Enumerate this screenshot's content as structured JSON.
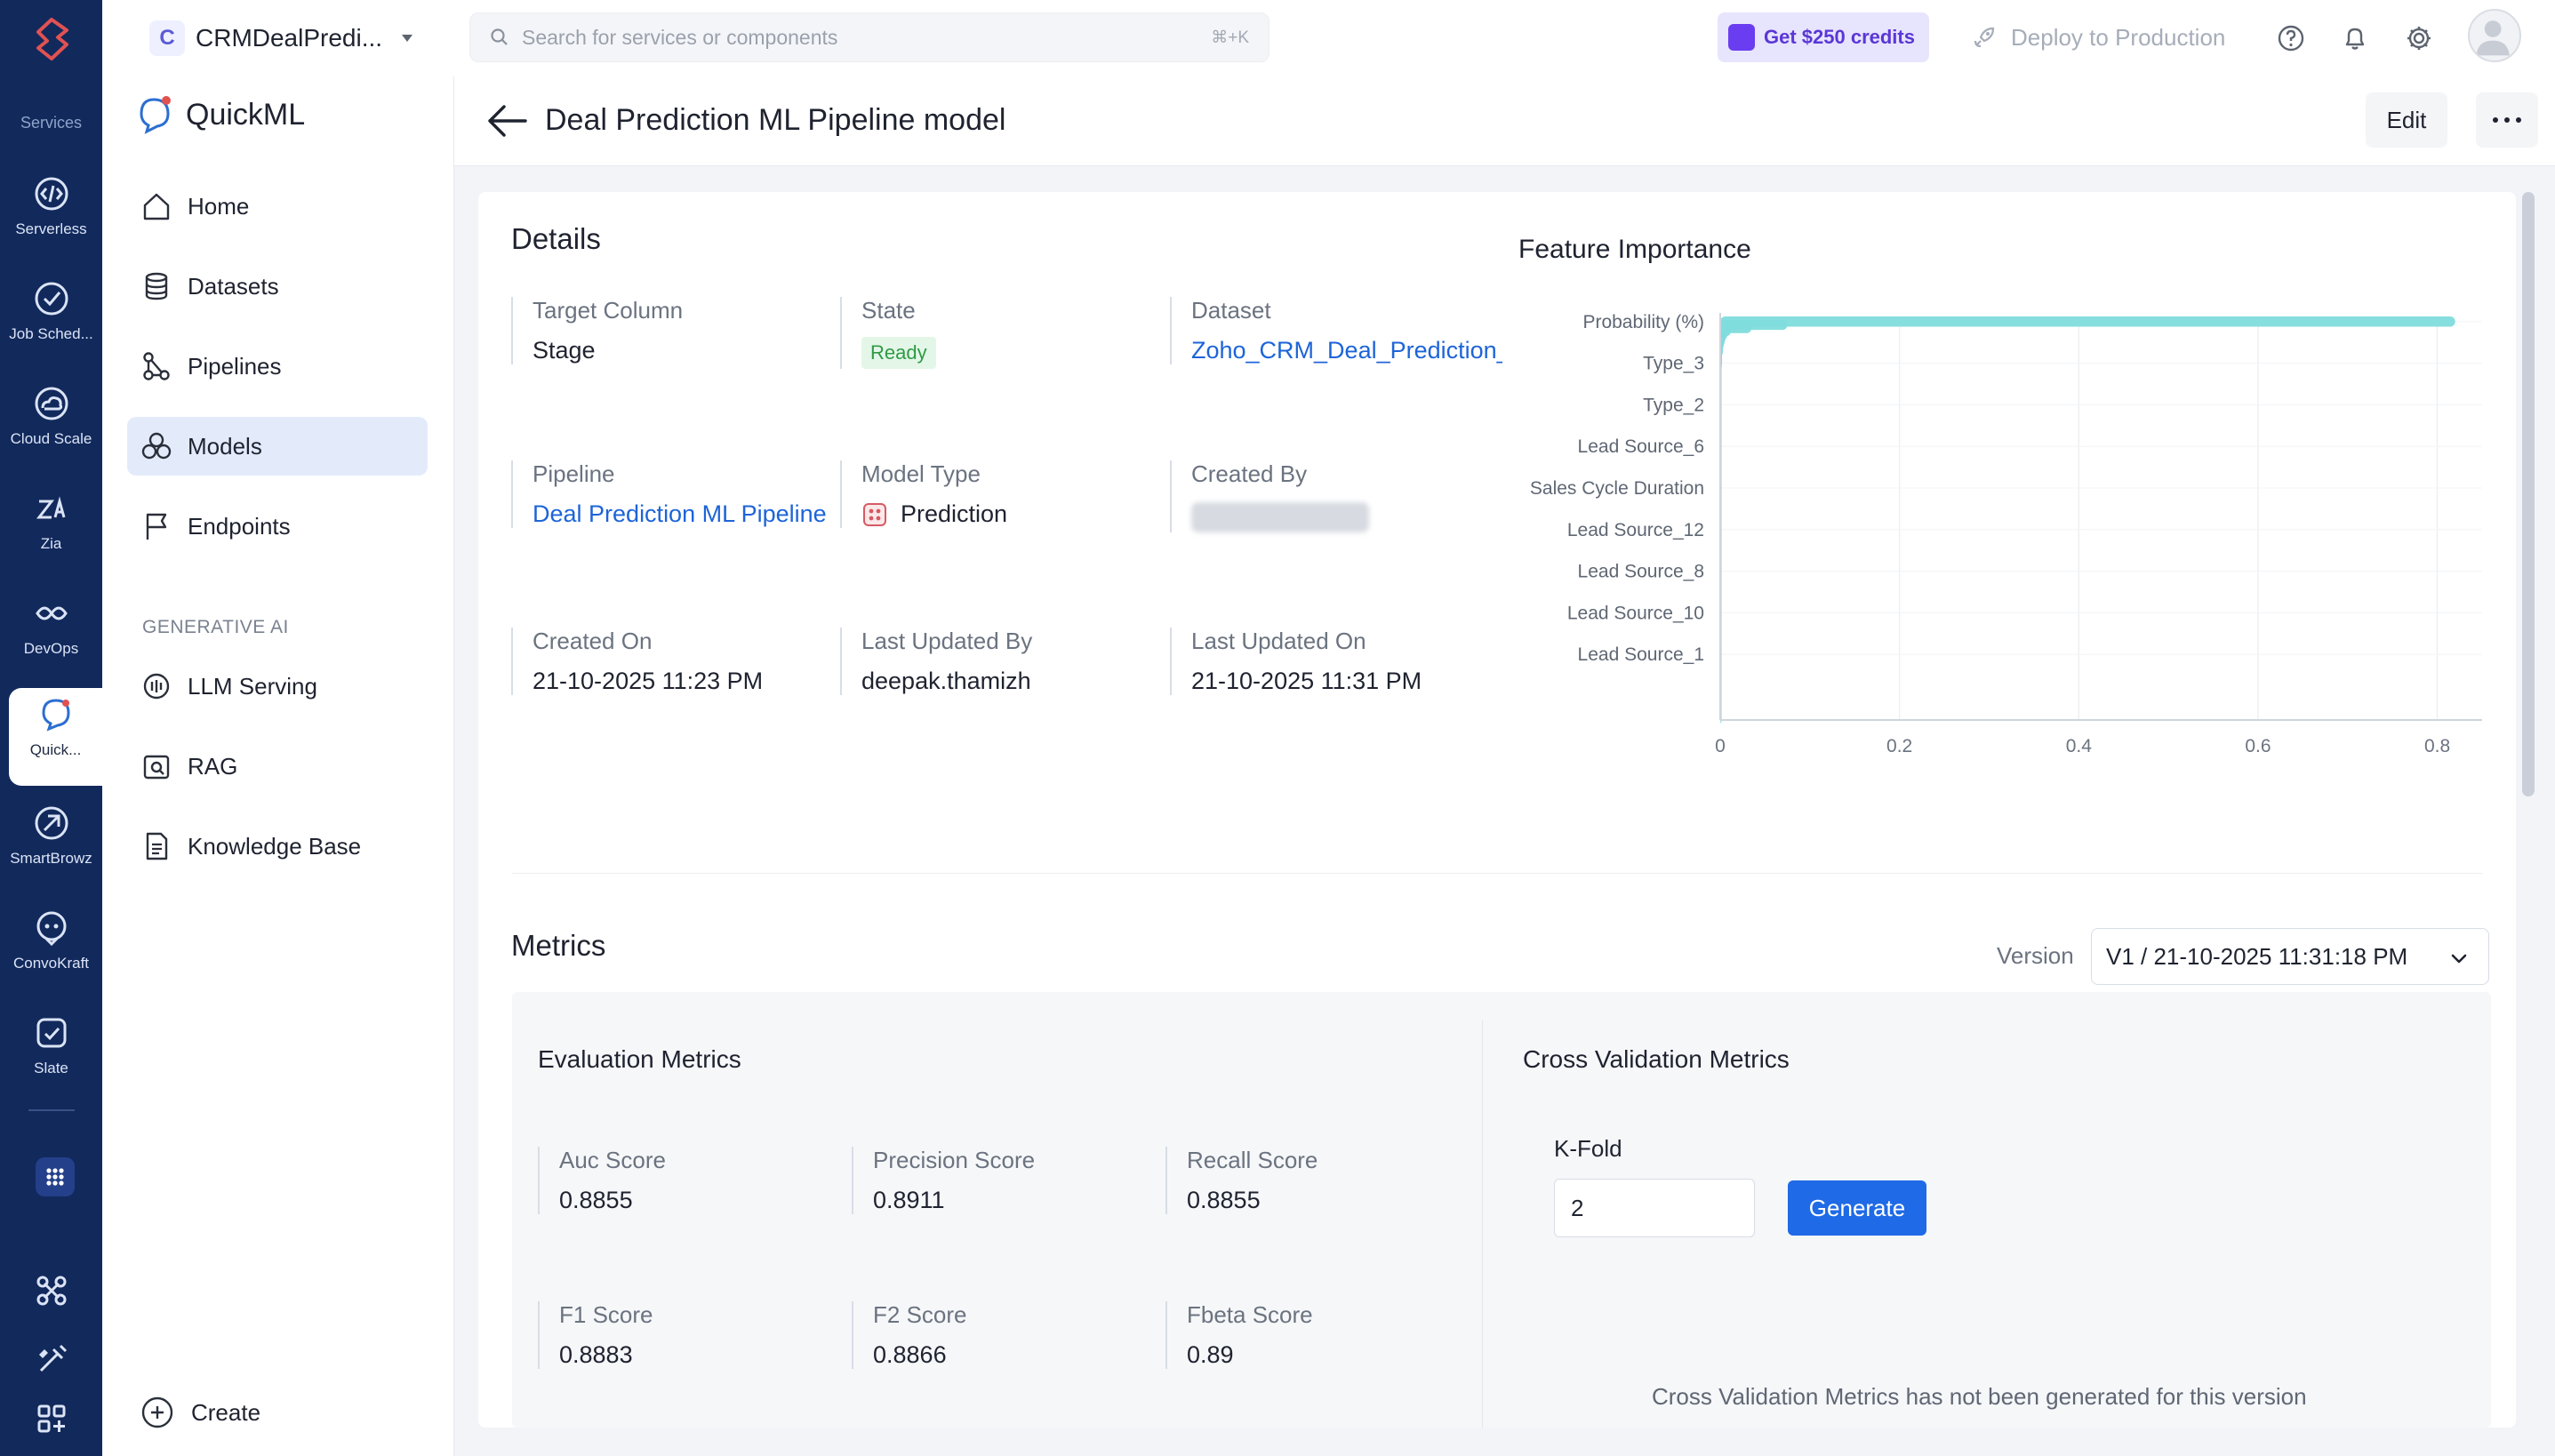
{
  "rail": {
    "services_label": "Services",
    "items": [
      {
        "label": "Serverless"
      },
      {
        "label": "Job Sched..."
      },
      {
        "label": "Cloud Scale"
      },
      {
        "label": "Zia"
      },
      {
        "label": "DevOps"
      },
      {
        "label": "Quick..."
      },
      {
        "label": "SmartBrowz"
      },
      {
        "label": "ConvoKraft"
      },
      {
        "label": "Slate"
      }
    ]
  },
  "header": {
    "project_badge": "C",
    "project_name": "CRMDealPredi...",
    "search_placeholder": "Search for services or components",
    "search_shortcut": "⌘+K",
    "credits_label": "Get $250 credits",
    "deploy_label": "Deploy to Production"
  },
  "sidebar": {
    "brand": "QuickML",
    "items": [
      {
        "label": "Home",
        "icon": "home-icon"
      },
      {
        "label": "Datasets",
        "icon": "database-icon"
      },
      {
        "label": "Pipelines",
        "icon": "pipeline-icon"
      },
      {
        "label": "Models",
        "icon": "models-icon"
      },
      {
        "label": "Endpoints",
        "icon": "flag-icon"
      }
    ],
    "section_label": "GENERATIVE AI",
    "gen_items": [
      {
        "label": "LLM Serving",
        "icon": "llm-serving-icon"
      },
      {
        "label": "RAG",
        "icon": "rag-icon"
      },
      {
        "label": "Knowledge Base",
        "icon": "document-icon"
      }
    ],
    "create_label": "Create"
  },
  "page": {
    "title": "Deal Prediction ML Pipeline model",
    "edit_label": "Edit"
  },
  "details": {
    "title": "Details",
    "fields": {
      "target_column": {
        "label": "Target Column",
        "value": "Stage"
      },
      "state": {
        "label": "State",
        "value": "Ready"
      },
      "dataset": {
        "label": "Dataset",
        "value": "Zoho_CRM_Deal_Prediction_S"
      },
      "pipeline": {
        "label": "Pipeline",
        "value": "Deal Prediction ML Pipeline"
      },
      "model_type": {
        "label": "Model Type",
        "value": "Prediction"
      },
      "created_by": {
        "label": "Created By"
      },
      "created_on": {
        "label": "Created On",
        "value": "21-10-2025 11:23 PM"
      },
      "last_updated_by": {
        "label": "Last Updated By",
        "value": "deepak.thamizh"
      },
      "last_updated_on": {
        "label": "Last Updated On",
        "value": "21-10-2025 11:31 PM"
      }
    }
  },
  "chart_data": {
    "type": "bar",
    "title": "Feature Importance",
    "orientation": "horizontal",
    "bar_color": "#7fdcdc",
    "xlim": [
      0,
      0.85
    ],
    "x_ticks": [
      "0",
      "0.2",
      "0.4",
      "0.6",
      "0.8"
    ],
    "x_tick_values": [
      0,
      0.2,
      0.4,
      0.6,
      0.8
    ],
    "grid": true,
    "labeled_categories": [
      "Probability (%)",
      "Type_3",
      "Type_2",
      "Lead Source_6",
      "Sales Cycle Duration",
      "Lead Source_12",
      "Lead Source_8",
      "Lead Source_10",
      "Lead Source_1"
    ],
    "values": [
      0.82,
      0.075,
      0.035,
      0.012,
      0.008,
      0.006,
      0.005,
      0.004,
      0.003,
      0.003,
      0.002,
      0.002,
      0.002,
      0.002,
      0.001,
      0.001,
      0.001,
      0.001,
      0.001,
      0.001,
      0.001,
      0.001,
      0.001,
      0.001,
      0.001,
      0.001,
      0.001,
      0.001,
      0.001,
      0.001,
      0.001,
      0.001,
      0.001,
      0.001,
      0.001,
      0.001,
      0.001,
      0.001,
      0.001,
      0.001,
      0.001,
      0.001,
      0.001,
      0.001,
      0.001,
      0.001,
      0.001,
      0.001,
      0.001,
      0.001,
      0.001,
      0.001,
      0.001,
      0.001,
      0.001,
      0.001,
      0.001,
      0.001,
      0.001,
      0.001,
      0.001,
      0.001,
      0.001,
      0.001,
      0.001,
      0.001,
      0.001,
      0.001,
      0.001,
      0.001,
      0.001,
      0.001,
      0.001,
      0.001,
      0.001,
      0.001,
      0.001,
      0.001,
      0.001,
      0.001,
      0.001,
      0.001,
      0.001,
      0.001,
      0.001,
      0.001,
      0.001,
      0.001,
      0.001,
      0.001,
      0.001,
      0.001,
      0.001,
      0.001,
      0.001,
      0.001,
      0.001,
      0.001,
      0.001,
      0.001,
      0.001,
      0.001,
      0.001,
      0.001,
      0.001,
      0.001,
      0.001,
      0.001,
      0.001,
      0.001,
      0.001,
      0.001,
      0.001,
      0.001,
      0.001,
      0.001,
      0.001,
      0.001,
      0.001,
      0.001,
      0.001,
      0.001,
      0.001,
      0.001,
      0.001
    ]
  },
  "metrics": {
    "title": "Metrics",
    "version_label": "Version",
    "version_value": "V1 / 21-10-2025 11:31:18 PM",
    "evaluation": {
      "title": "Evaluation Metrics",
      "items": [
        {
          "label": "Auc Score",
          "value": "0.8855"
        },
        {
          "label": "Precision Score",
          "value": "0.8911"
        },
        {
          "label": "Recall Score",
          "value": "0.8855"
        },
        {
          "label": "F1 Score",
          "value": "0.8883"
        },
        {
          "label": "F2 Score",
          "value": "0.8866"
        },
        {
          "label": "Fbeta Score",
          "value": "0.89"
        }
      ]
    },
    "cross_validation": {
      "title": "Cross Validation Metrics",
      "kfold_label": "K-Fold",
      "kfold_value": "2",
      "generate_label": "Generate",
      "empty_note": "Cross Validation Metrics has not been generated for this version"
    }
  },
  "colors": {
    "rail_bg": "#12295c",
    "accent": "#1f6ae6",
    "link": "#1d64d8",
    "ready_badge_text": "#2f9a45",
    "credits_text": "#5a37d6"
  }
}
